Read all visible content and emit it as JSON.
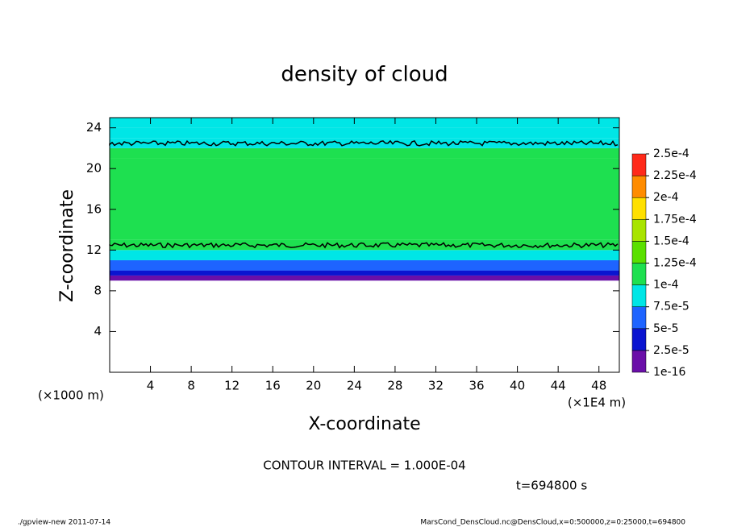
{
  "chart_data": {
    "type": "contour",
    "title": "density of cloud",
    "xlabel": "X-coordinate",
    "ylabel": "Z-coordinate",
    "xunit": "(×1E4 m)",
    "yunit": "(×1000 m)",
    "xlim": [
      0,
      50
    ],
    "xticks": [
      4,
      8,
      12,
      16,
      20,
      24,
      28,
      32,
      36,
      40,
      44,
      48
    ],
    "ylim": [
      0,
      25
    ],
    "yticks": [
      4,
      8,
      12,
      16,
      20,
      24
    ],
    "ybins": [
      9,
      9.5,
      10,
      11,
      12,
      13,
      21,
      22,
      23,
      24,
      25
    ],
    "values": [
      1e-05,
      3e-05,
      6e-05,
      8e-05,
      0.000105,
      0.00011,
      0.000105,
      9e-05,
      8e-05,
      7.6e-05
    ],
    "levels": [
      1e-16,
      {
        "value": 2.5e-05,
        "label": "2.5e-5"
      },
      {
        "value": 5e-05,
        "label": "5e-5"
      },
      {
        "value": 7.5e-05,
        "label": "7.5e-5"
      },
      {
        "value": 0.0001,
        "label": "1e-4"
      },
      {
        "value": 0.000125,
        "label": "1.25e-4"
      },
      {
        "value": 0.00015,
        "label": "1.5e-4"
      },
      {
        "value": 0.000175,
        "label": "1.75e-4"
      },
      {
        "value": 0.0002,
        "label": "2e-4"
      },
      {
        "value": 0.000225,
        "label": "2.25e-4"
      },
      {
        "value": 0.00025,
        "label": "2.5e-4"
      }
    ],
    "level_colors": [
      "#6a0fa8",
      "#0a14d0",
      "#1e64ff",
      "#00e6e6",
      "#1ee050",
      "#5ae000",
      "#a8e400",
      "#ffe000",
      "#ff8c00",
      "#ff2a1a",
      "#ff9c9c"
    ],
    "contour_interval": "CONTOUR INTERVAL = 1.000E-04",
    "time": "t=694800 s",
    "footer_left": "./gpview-new  2011-07-14",
    "footer_right": "MarsCond_DensCloud.nc@DensCloud,x=0:500000,z=0:25000,t=694800"
  }
}
